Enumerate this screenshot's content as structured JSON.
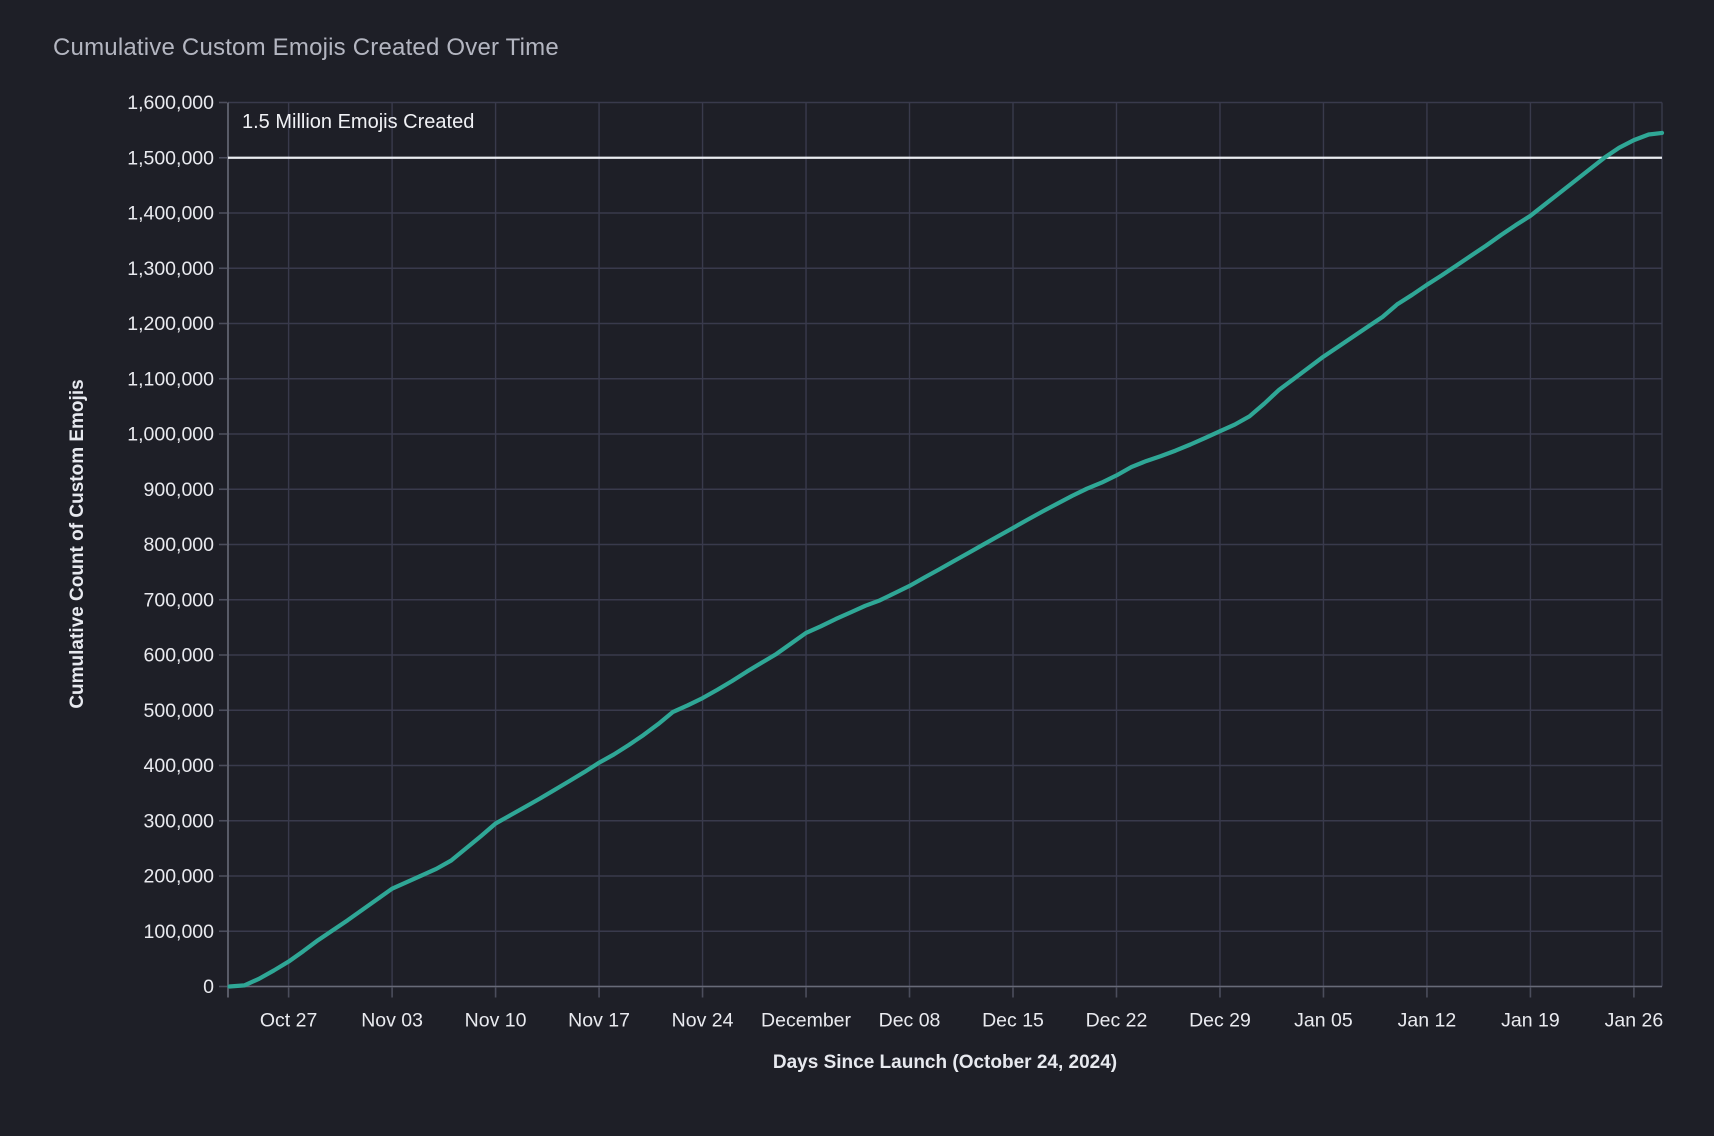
{
  "header": {
    "title": "Cumulative Custom Emojis Created Over Time"
  },
  "colors": {
    "background": "#1e1f27",
    "gridline": "#393a4c",
    "axis_line": "#686b78",
    "tick_mark": "#4b4d5c",
    "tick_label": "#e9eaef",
    "title_text": "#b4b6c1",
    "axis_title_text": "#e7e9ef",
    "series_line": "#2fa796",
    "reference_line": "#eaecf1"
  },
  "chart_data": {
    "type": "line",
    "title": "Cumulative Custom Emojis Created Over Time",
    "xlabel": "Days Since Launch (October 24, 2024)",
    "ylabel": "Cumulative Count of Custom Emojis",
    "launch_date": "October 24, 2024",
    "ylim": [
      0,
      1600000
    ],
    "y_tick_interval": 100000,
    "grid": true,
    "legend": "none",
    "x_domain_days": [
      -1.1,
      95.9
    ],
    "x_ticks": [
      {
        "label": "Oct 27",
        "day": 3
      },
      {
        "label": "Nov 03",
        "day": 10
      },
      {
        "label": "Nov 10",
        "day": 17
      },
      {
        "label": "Nov 17",
        "day": 24
      },
      {
        "label": "Nov 24",
        "day": 31
      },
      {
        "label": "December",
        "day": 38
      },
      {
        "label": "Dec 08",
        "day": 45
      },
      {
        "label": "Dec 15",
        "day": 52
      },
      {
        "label": "Dec 22",
        "day": 59
      },
      {
        "label": "Dec 29",
        "day": 66
      },
      {
        "label": "Jan 05",
        "day": 73
      },
      {
        "label": "Jan 12",
        "day": 80
      },
      {
        "label": "Jan 19",
        "day": 87
      },
      {
        "label": "Jan 26",
        "day": 94
      }
    ],
    "reference_line": {
      "value": 1500000,
      "label": "1.5 Million Emojis Created"
    },
    "series": [
      {
        "name": "cumulative-custom-emojis",
        "points": [
          [
            -1,
            0
          ],
          [
            0,
            2000
          ],
          [
            1,
            14000
          ],
          [
            2,
            29000
          ],
          [
            3,
            45000
          ],
          [
            4,
            64000
          ],
          [
            5,
            84000
          ],
          [
            6,
            102000
          ],
          [
            7,
            120000
          ],
          [
            8,
            139000
          ],
          [
            9,
            158000
          ],
          [
            10,
            177000
          ],
          [
            11,
            189000
          ],
          [
            12,
            201000
          ],
          [
            13,
            213000
          ],
          [
            14,
            228000
          ],
          [
            15,
            250000
          ],
          [
            16,
            272000
          ],
          [
            17,
            295000
          ],
          [
            18,
            310000
          ],
          [
            19,
            325000
          ],
          [
            20,
            340000
          ],
          [
            21,
            356000
          ],
          [
            22,
            372000
          ],
          [
            23,
            388000
          ],
          [
            24,
            405000
          ],
          [
            25,
            420000
          ],
          [
            26,
            437000
          ],
          [
            27,
            455000
          ],
          [
            28,
            475000
          ],
          [
            29,
            497000
          ],
          [
            30,
            509000
          ],
          [
            31,
            522000
          ],
          [
            32,
            537000
          ],
          [
            33,
            553000
          ],
          [
            34,
            570000
          ],
          [
            35,
            586000
          ],
          [
            36,
            602000
          ],
          [
            37,
            621000
          ],
          [
            38,
            640000
          ],
          [
            39,
            652000
          ],
          [
            40,
            665000
          ],
          [
            41,
            677000
          ],
          [
            42,
            689000
          ],
          [
            43,
            699000
          ],
          [
            44,
            712000
          ],
          [
            45,
            725000
          ],
          [
            46,
            740000
          ],
          [
            47,
            755000
          ],
          [
            48,
            770000
          ],
          [
            49,
            785000
          ],
          [
            50,
            800000
          ],
          [
            51,
            815000
          ],
          [
            52,
            830000
          ],
          [
            53,
            845000
          ],
          [
            54,
            860000
          ],
          [
            55,
            874000
          ],
          [
            56,
            888000
          ],
          [
            57,
            901000
          ],
          [
            58,
            912000
          ],
          [
            59,
            925000
          ],
          [
            60,
            940000
          ],
          [
            61,
            951000
          ],
          [
            62,
            960000
          ],
          [
            63,
            970000
          ],
          [
            64,
            981000
          ],
          [
            65,
            993000
          ],
          [
            66,
            1005000
          ],
          [
            67,
            1017000
          ],
          [
            68,
            1032000
          ],
          [
            69,
            1055000
          ],
          [
            70,
            1080000
          ],
          [
            71,
            1100000
          ],
          [
            72,
            1120000
          ],
          [
            73,
            1140000
          ],
          [
            74,
            1158000
          ],
          [
            75,
            1176000
          ],
          [
            76,
            1194000
          ],
          [
            77,
            1212000
          ],
          [
            78,
            1235000
          ],
          [
            79,
            1252000
          ],
          [
            80,
            1270000
          ],
          [
            81,
            1287000
          ],
          [
            82,
            1305000
          ],
          [
            83,
            1323000
          ],
          [
            84,
            1341000
          ],
          [
            85,
            1360000
          ],
          [
            86,
            1378000
          ],
          [
            87,
            1395000
          ],
          [
            88,
            1416000
          ],
          [
            89,
            1437000
          ],
          [
            90,
            1458000
          ],
          [
            91,
            1479000
          ],
          [
            92,
            1500000
          ],
          [
            93,
            1518000
          ],
          [
            94,
            1532000
          ],
          [
            95,
            1542000
          ],
          [
            96,
            1545000
          ]
        ]
      }
    ]
  }
}
